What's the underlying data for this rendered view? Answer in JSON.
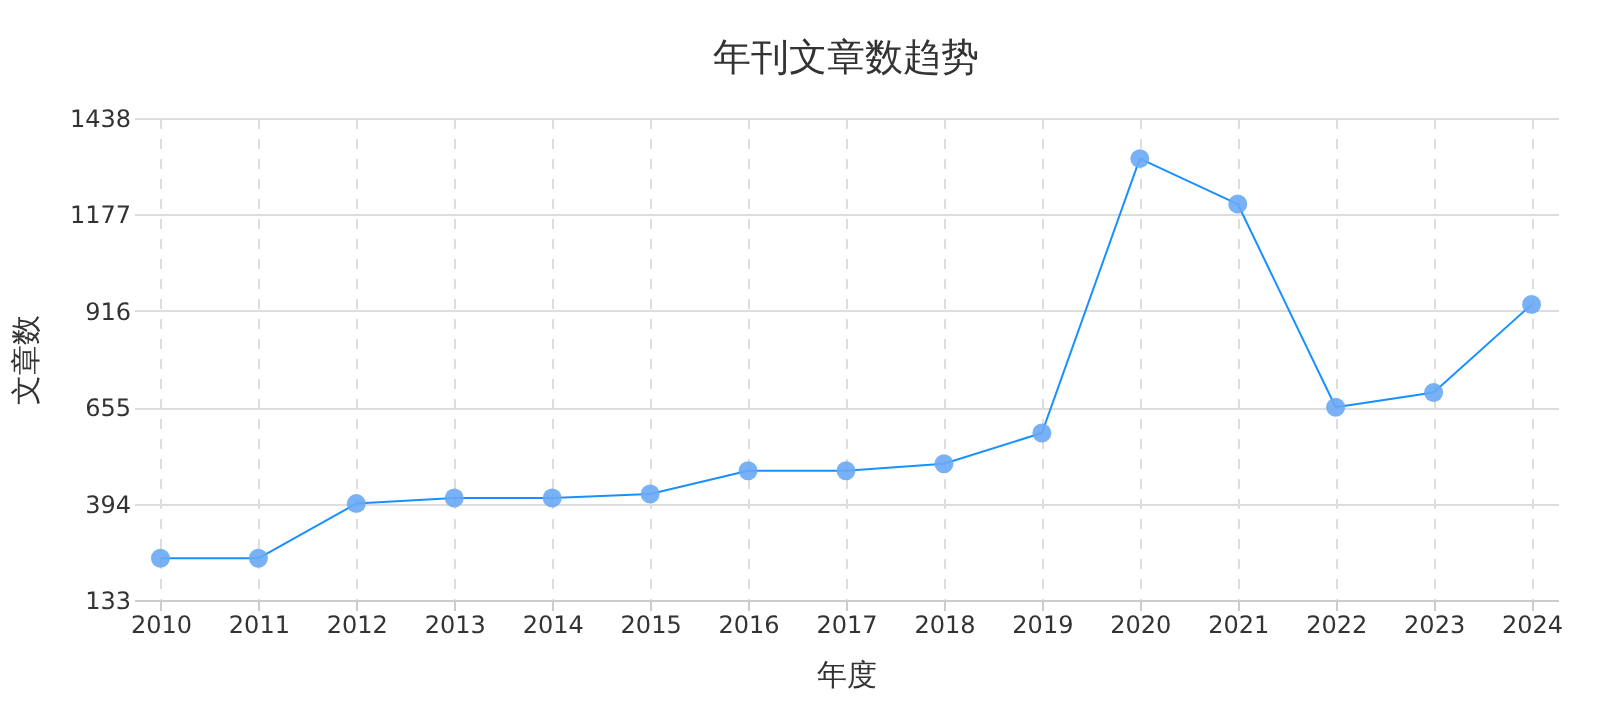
{
  "chart_data": {
    "type": "line",
    "title": "年刊文章数趋势",
    "xlabel": "年度",
    "ylabel": "文章数",
    "categories": [
      "2010",
      "2011",
      "2012",
      "2013",
      "2014",
      "2015",
      "2016",
      "2017",
      "2018",
      "2019",
      "2020",
      "2021",
      "2022",
      "2023",
      "2024"
    ],
    "series": [
      {
        "color": "#1890ff",
        "values": [
          246,
          246,
          394,
          409,
          409,
          420,
          483,
          483,
          502,
          585,
          1328,
          1205,
          655,
          695,
          933
        ]
      }
    ],
    "ylim": [
      133,
      1438
    ],
    "yticks": [
      133,
      394,
      655,
      916,
      1177,
      1438
    ],
    "grid": true,
    "marker": "circle",
    "line_style": "solid"
  }
}
